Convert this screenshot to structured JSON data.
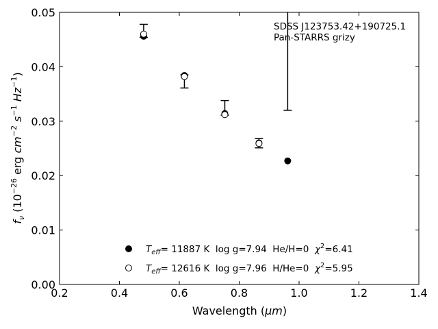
{
  "chart_data": {
    "type": "scatter",
    "xlabel_main": "Wavelength (",
    "xlabel_unit": "μm",
    "xlabel_close": ")",
    "ylabel_parts": {
      "f": "f",
      "nu": "ν",
      "open": " (10",
      "exp1": "−26",
      "erg": " erg ",
      "cm": "cm",
      "exp2": "−2",
      "s": " s",
      "exp3": "−1",
      "hz": " Hz",
      "exp4": "−1",
      "close": ")"
    },
    "annotation": [
      "SDSS J123753.42+190725.1",
      "Pan-STARRS grizy"
    ],
    "xlim": [
      0.2,
      1.4
    ],
    "ylim": [
      0.0,
      0.05
    ],
    "xticks": [
      0.2,
      0.4,
      0.6,
      0.8,
      1.0,
      1.2,
      1.4
    ],
    "xtick_labels": [
      "0.2",
      "0.4",
      "0.6",
      "0.8",
      "1.0",
      "1.2",
      "1.4"
    ],
    "yticks": [
      0.0,
      0.01,
      0.02,
      0.03,
      0.04,
      0.05
    ],
    "ytick_labels": [
      "0.00",
      "0.01",
      "0.02",
      "0.03",
      "0.04",
      "0.05"
    ],
    "observed": {
      "x": [
        0.481,
        0.617,
        0.752,
        0.866,
        0.962
      ],
      "y": [
        0.0457,
        0.0385,
        0.0313,
        0.026,
        null
      ],
      "err_low": [
        0.0454,
        0.0361,
        0.0311,
        0.0251,
        0.032
      ],
      "err_high": [
        0.0478,
        0.0385,
        0.0338,
        0.0268,
        0.0505
      ]
    },
    "series": [
      {
        "marker": "filled",
        "x": [
          0.481,
          0.617,
          0.752,
          0.866,
          0.962
        ],
        "y": [
          0.0456,
          0.0384,
          0.0314,
          0.026,
          0.0227
        ]
      },
      {
        "marker": "open",
        "x": [
          0.481,
          0.617,
          0.752,
          0.866
        ],
        "y": [
          0.046,
          0.0382,
          0.0312,
          0.0259
        ]
      }
    ],
    "legend": [
      {
        "marker": "filled",
        "label_T": "T",
        "label_eff": "eff",
        "label_rest": "= 11887 K  log g=7.94  He/H=0  ",
        "label_chi": "χ",
        "label_chi_exp": "2",
        "label_chi_val": "=6.41"
      },
      {
        "marker": "open",
        "label_T": "T",
        "label_eff": "eff",
        "label_rest": "= 12616 K  log g=7.96  H/He=0  ",
        "label_chi": "χ",
        "label_chi_exp": "2",
        "label_chi_val": "=5.95"
      }
    ],
    "legend_position": "bottom-center"
  }
}
